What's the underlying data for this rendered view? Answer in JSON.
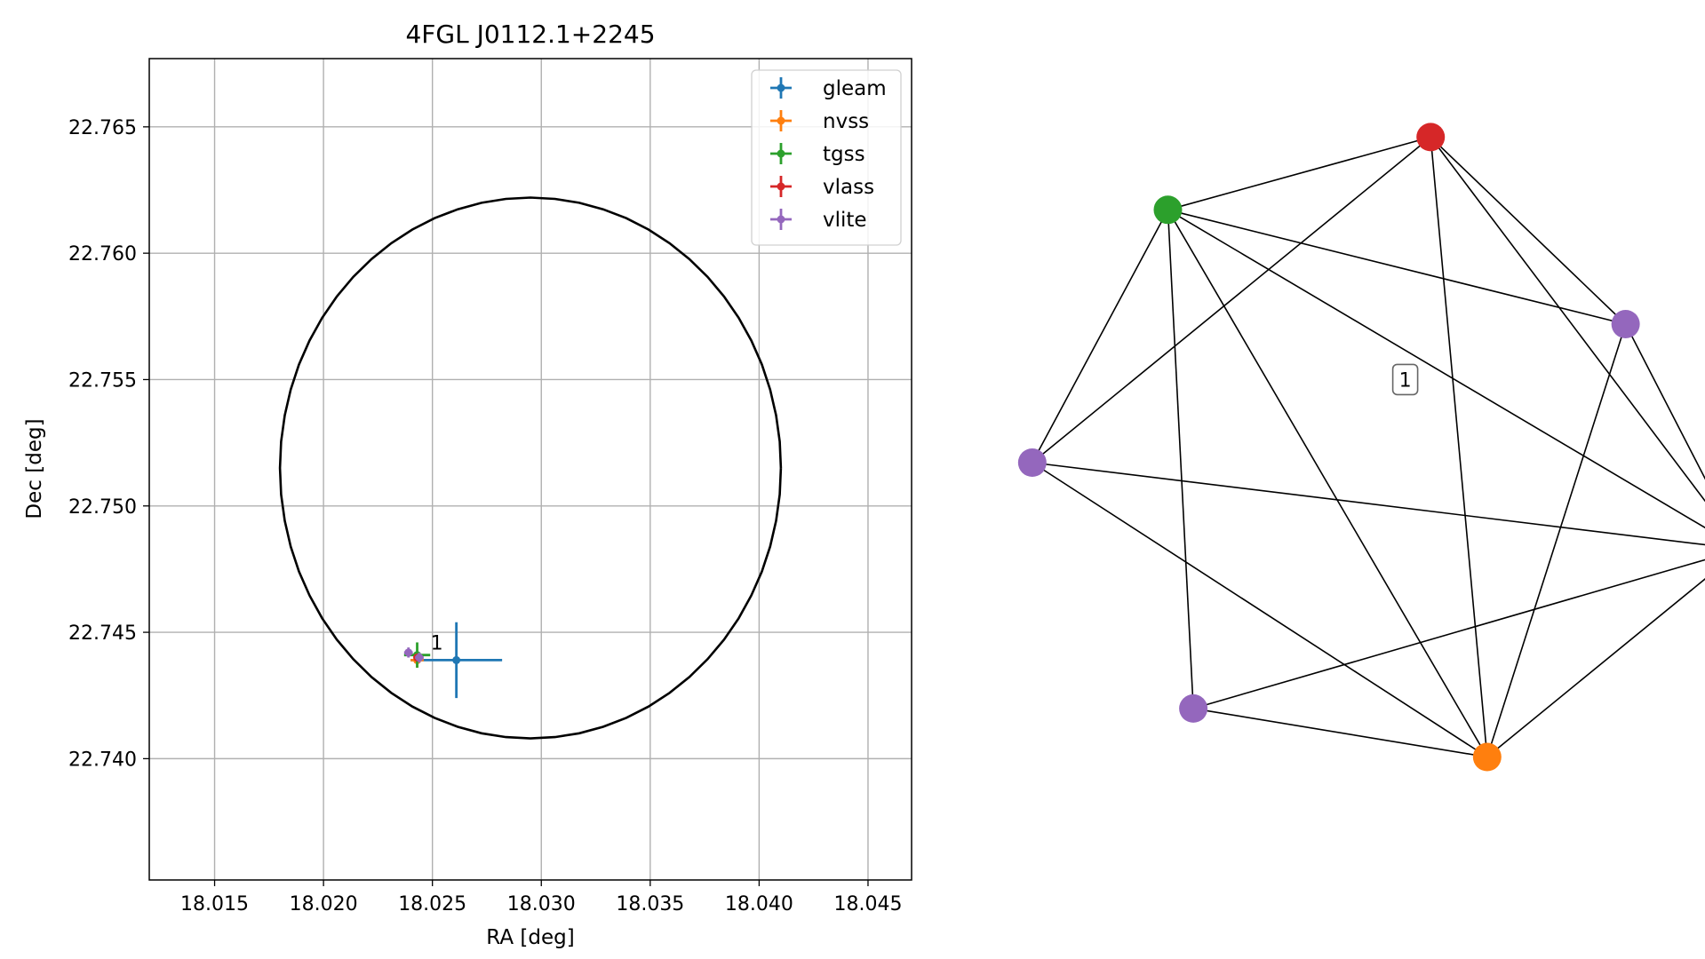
{
  "chart_data": [
    {
      "type": "scatter",
      "title": "4FGL J0112.1+2245",
      "xlabel": "RA [deg]",
      "ylabel": "Dec [deg]",
      "xlim": [
        18.012,
        18.047
      ],
      "ylim": [
        22.7352,
        22.7677
      ],
      "xticks": [
        18.015,
        18.02,
        18.025,
        18.03,
        18.035,
        18.04,
        18.045
      ],
      "yticks": [
        22.74,
        22.745,
        22.75,
        22.755,
        22.76,
        22.765
      ],
      "xtick_labels": [
        "18.015",
        "18.020",
        "18.025",
        "18.030",
        "18.035",
        "18.040",
        "18.045"
      ],
      "ytick_labels": [
        "22.740",
        "22.745",
        "22.750",
        "22.755",
        "22.760",
        "22.765"
      ],
      "grid": true,
      "legend_position": "top-right",
      "ellipse": {
        "center": [
          18.0295,
          22.7515
        ],
        "semi_ra": 0.0115,
        "semi_dec": 0.0107,
        "color": "#000000"
      },
      "series": [
        {
          "name": "gleam",
          "color": "#1f77b4",
          "points": [
            {
              "x": 18.0261,
              "y": 22.7439,
              "xerr": 0.0021,
              "yerr": 0.0015
            }
          ]
        },
        {
          "name": "nvss",
          "color": "#ff7f0e",
          "points": [
            {
              "x": 18.0243,
              "y": 22.7439,
              "xerr": 0.0003,
              "yerr": 0.0003
            }
          ]
        },
        {
          "name": "tgss",
          "color": "#2ca02c",
          "points": [
            {
              "x": 18.0243,
              "y": 22.7441,
              "xerr": 0.0006,
              "yerr": 0.0005
            }
          ]
        },
        {
          "name": "vlass",
          "color": "#d62728",
          "points": [
            {
              "x": 18.0243,
              "y": 22.744,
              "xerr": 0.0001,
              "yerr": 0.0001
            }
          ]
        },
        {
          "name": "vlite",
          "color": "#9467bd",
          "points": [
            {
              "x": 18.0239,
              "y": 22.7442,
              "xerr": 0.0002,
              "yerr": 0.0002
            },
            {
              "x": 18.0244,
              "y": 22.744,
              "xerr": 0.0002,
              "yerr": 0.0002
            }
          ]
        }
      ],
      "annotations": [
        {
          "text": "1",
          "x": 18.025,
          "y": 22.7446
        }
      ]
    },
    {
      "type": "network",
      "nodes": [
        {
          "id": "red",
          "color": "#d62728",
          "pos": [
            0.645,
            0.08
          ]
        },
        {
          "id": "green",
          "color": "#2ca02c",
          "pos": [
            0.18,
            0.185
          ]
        },
        {
          "id": "purple-right",
          "color": "#9467bd",
          "pos": [
            0.99,
            0.35
          ]
        },
        {
          "id": "purple-left",
          "color": "#9467bd",
          "pos": [
            -0.06,
            0.55
          ]
        },
        {
          "id": "blue",
          "color": "#1f77b4",
          "pos": [
            1.195,
            0.675
          ]
        },
        {
          "id": "purple-bottom",
          "color": "#9467bd",
          "pos": [
            0.225,
            0.905
          ]
        },
        {
          "id": "orange",
          "color": "#ff7f0e",
          "pos": [
            0.745,
            0.975
          ]
        }
      ],
      "edges": [
        [
          "red",
          "green"
        ],
        [
          "red",
          "purple-left"
        ],
        [
          "red",
          "purple-right"
        ],
        [
          "red",
          "blue"
        ],
        [
          "red",
          "orange"
        ],
        [
          "green",
          "purple-right"
        ],
        [
          "green",
          "purple-left"
        ],
        [
          "green",
          "blue"
        ],
        [
          "green",
          "purple-bottom"
        ],
        [
          "green",
          "orange"
        ],
        [
          "purple-right",
          "blue"
        ],
        [
          "purple-right",
          "orange"
        ],
        [
          "purple-left",
          "blue"
        ],
        [
          "purple-left",
          "orange"
        ],
        [
          "blue",
          "purple-bottom"
        ],
        [
          "blue",
          "orange"
        ],
        [
          "purple-bottom",
          "orange"
        ]
      ],
      "label": {
        "text": "1",
        "pos": [
          0.6,
          0.43
        ]
      }
    }
  ]
}
